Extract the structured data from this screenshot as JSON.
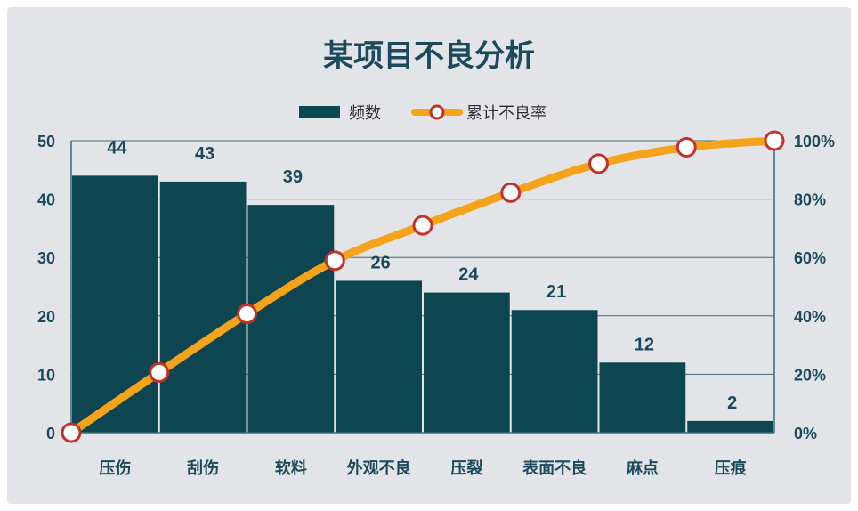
{
  "chart_data": {
    "type": "bar",
    "title": "某项目不良分析",
    "categories": [
      "压伤",
      "刮伤",
      "软料",
      "外观不良",
      "压裂",
      "表面不良",
      "麻点",
      "压痕"
    ],
    "series": [
      {
        "name": "频数",
        "type": "bar",
        "axis": "left",
        "values": [
          44,
          43,
          39,
          26,
          24,
          21,
          12,
          2
        ],
        "data_labels": [
          "44",
          "43",
          "39",
          "26",
          "24",
          "21",
          "12",
          "2"
        ]
      },
      {
        "name": "累计不良率",
        "type": "line",
        "axis": "right",
        "x": [
          0,
          1,
          2,
          3,
          4,
          5,
          6,
          7,
          8
        ],
        "values": [
          0,
          20.6,
          40.7,
          58.9,
          71.0,
          82.2,
          92.1,
          97.7,
          100
        ]
      }
    ],
    "y_left": {
      "ylim": [
        0,
        50
      ],
      "ticks": [
        "0",
        "10",
        "20",
        "30",
        "40",
        "50"
      ]
    },
    "y_right": {
      "ylim": [
        0,
        100
      ],
      "ticks": [
        "0%",
        "20%",
        "40%",
        "60%",
        "80%",
        "100%"
      ]
    },
    "grid": true,
    "legend": "top-center",
    "colors": {
      "bar": "#0d4550",
      "line": "#f5a31a",
      "marker_stroke": "#c0332c",
      "marker_fill": "#ffffff",
      "text": "#1b4a5c",
      "grid": "#3d6d7a"
    }
  }
}
